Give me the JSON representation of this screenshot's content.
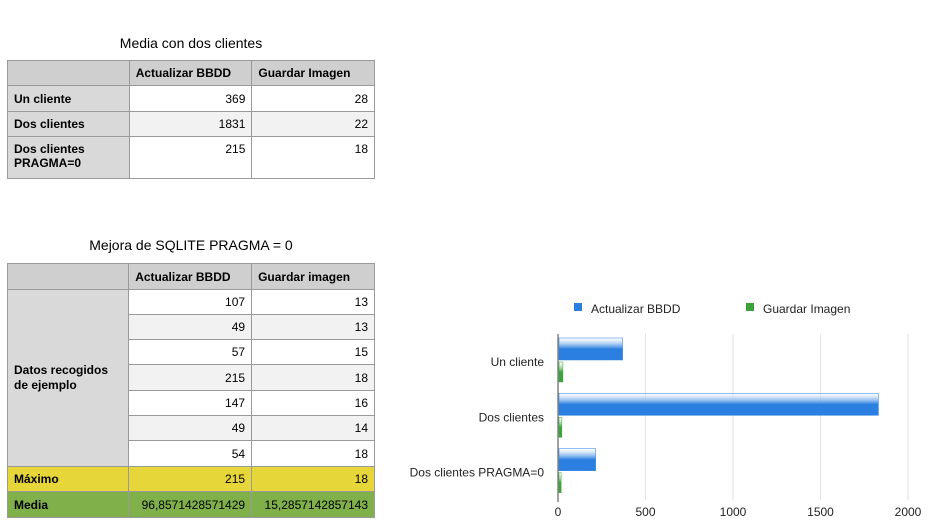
{
  "table1": {
    "title": "Media con dos clientes",
    "headers": [
      "",
      "Actualizar BBDD",
      "Guardar Imagen"
    ],
    "rows": [
      {
        "label": "Un cliente",
        "v1": "369",
        "v2": "28"
      },
      {
        "label": "Dos clientes",
        "v1": "1831",
        "v2": "22"
      },
      {
        "label": "Dos clientes\nPRAGMA=0",
        "v1": "215",
        "v2": "18"
      }
    ]
  },
  "table2": {
    "title": "Mejora de SQLITE PRAGMA = 0",
    "headers": [
      "",
      "Actualizar BBDD",
      "Guardar imagen"
    ],
    "group_label": "Datos recogidos\nde ejemplo",
    "rows": [
      {
        "v1": "107",
        "v2": "13"
      },
      {
        "v1": "49",
        "v2": "13"
      },
      {
        "v1": "57",
        "v2": "15"
      },
      {
        "v1": "215",
        "v2": "18"
      },
      {
        "v1": "147",
        "v2": "16"
      },
      {
        "v1": "49",
        "v2": "14"
      },
      {
        "v1": "54",
        "v2": "18"
      }
    ],
    "max": {
      "label": "Máximo",
      "v1": "215",
      "v2": "18"
    },
    "mean": {
      "label": "Media",
      "v1": "96,8571428571429",
      "v2": "15,2857142857143"
    }
  },
  "colors": {
    "series1": "#2a7fe0",
    "series2": "#3aa43a",
    "max_row": "#e6d63a",
    "mean_row": "#7fb04a"
  },
  "chart_data": {
    "type": "bar",
    "orientation": "horizontal",
    "categories": [
      "Un cliente",
      "Dos clientes",
      "Dos clientes PRAGMA=0"
    ],
    "series": [
      {
        "name": "Actualizar BBDD",
        "values": [
          369,
          1831,
          215
        ]
      },
      {
        "name": "Guardar Imagen",
        "values": [
          28,
          22,
          18
        ]
      }
    ],
    "xlim": [
      0,
      2000
    ],
    "xticks": [
      "0",
      "500",
      "1000",
      "1500",
      "2000"
    ],
    "grid": true,
    "legend": "top"
  }
}
